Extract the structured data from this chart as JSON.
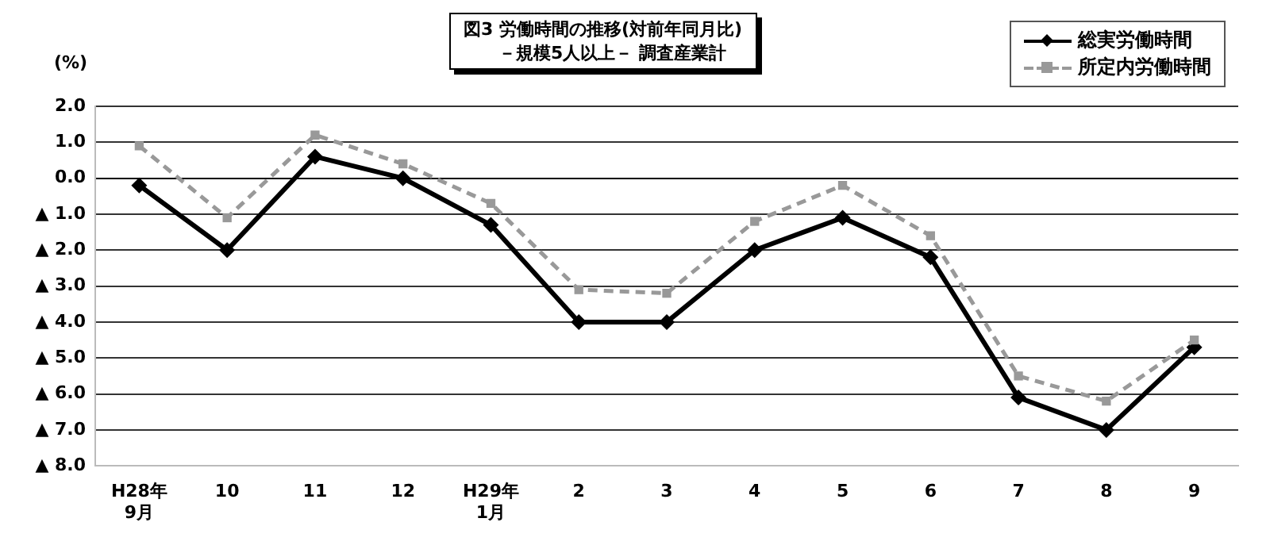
{
  "chart_data": {
    "type": "line",
    "title": "図3  労働時間の推移(対前年同月比)",
    "subtitle": "－規模5人以上－  調査産業計",
    "ylabel": "(%)",
    "categories": [
      "H28年\n9月",
      "10",
      "11",
      "12",
      "H29年\n1月",
      "2",
      "3",
      "4",
      "5",
      "6",
      "7",
      "8",
      "9"
    ],
    "series": [
      {
        "name": "総実労働時間",
        "color": "#000000",
        "marker": "diamond",
        "line_style": "solid",
        "values": [
          -0.2,
          -2.0,
          0.6,
          0.0,
          -1.3,
          -4.0,
          -4.0,
          -2.0,
          -1.1,
          -2.2,
          -6.1,
          -7.0,
          -4.7
        ]
      },
      {
        "name": "所定内労働時間",
        "color": "#999999",
        "marker": "square",
        "line_style": "dashed",
        "values": [
          0.9,
          -1.1,
          1.2,
          0.4,
          -0.7,
          -3.1,
          -3.2,
          -1.2,
          -0.2,
          -1.6,
          -5.5,
          -6.2,
          -4.5
        ]
      }
    ],
    "ylim": [
      -8,
      2
    ],
    "yticks": [
      {
        "value": 2,
        "label": "2.0"
      },
      {
        "value": 1,
        "label": "1.0"
      },
      {
        "value": 0,
        "label": "0.0"
      },
      {
        "value": -1,
        "label": "▲ 1.0"
      },
      {
        "value": -2,
        "label": "▲ 2.0"
      },
      {
        "value": -3,
        "label": "▲ 3.0"
      },
      {
        "value": -4,
        "label": "▲ 4.0"
      },
      {
        "value": -5,
        "label": "▲ 5.0"
      },
      {
        "value": -6,
        "label": "▲ 6.0"
      },
      {
        "value": -7,
        "label": "▲ 7.0"
      },
      {
        "value": -8,
        "label": "▲ 8.0"
      }
    ],
    "grid": "y",
    "legend": "top right"
  }
}
